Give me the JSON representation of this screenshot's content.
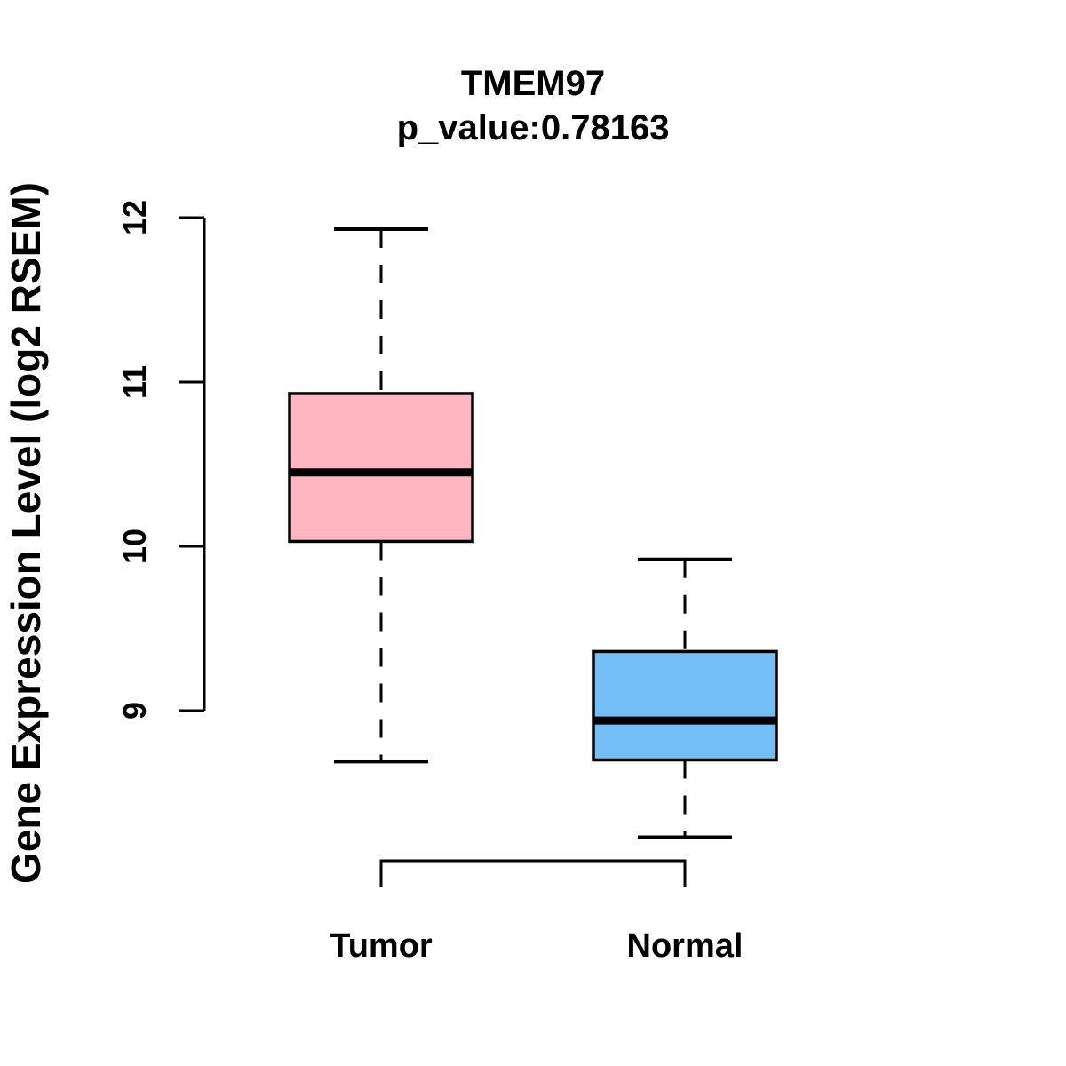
{
  "header": {
    "title": "TMEM97",
    "subtitle": "p_value:0.78163"
  },
  "y_axis": {
    "label": "Gene Expression Level (log2 RSEM)",
    "tick_labels": [
      "9",
      "10",
      "11",
      "12"
    ]
  },
  "x_axis": {
    "categories": [
      "Tumor",
      "Normal"
    ]
  },
  "colors": {
    "tumor_fill": "#FFB6C1",
    "normal_fill": "#73BEF5",
    "stroke": "#000000",
    "background": "#FFFFFF"
  },
  "chart_data": {
    "type": "boxplot",
    "title": "TMEM97",
    "subtitle": "p_value:0.78163",
    "p_value": 0.78163,
    "gene": "TMEM97",
    "xlabel": "",
    "ylabel": "Gene Expression Level (log2 RSEM)",
    "categories": [
      "Tumor",
      "Normal"
    ],
    "yticks": [
      9,
      10,
      11,
      12
    ],
    "ylim_drawn": [
      9,
      12
    ],
    "grid": false,
    "legend": "none",
    "series": [
      {
        "name": "Tumor",
        "color": "#FFB6C1",
        "whisker_low": 8.69,
        "q1": 10.03,
        "median": 10.45,
        "q3": 10.93,
        "whisker_high": 11.93,
        "outliers": []
      },
      {
        "name": "Normal",
        "color": "#73BEF5",
        "whisker_low": 8.23,
        "q1": 8.7,
        "median": 8.94,
        "q3": 9.36,
        "whisker_high": 9.92,
        "outliers": []
      }
    ]
  }
}
